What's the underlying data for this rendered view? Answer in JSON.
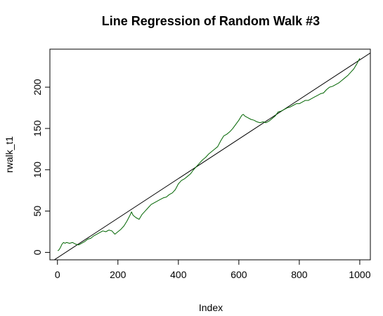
{
  "chart_data": {
    "type": "line",
    "title": "Line Regression of Random Walk #3",
    "xlabel": "Index",
    "ylabel": "rwalk_t1",
    "xlim": [
      -25,
      1035
    ],
    "ylim": [
      -9,
      246
    ],
    "x_ticks": [
      0,
      200,
      400,
      600,
      800,
      1000
    ],
    "y_ticks": [
      0,
      50,
      100,
      150,
      200
    ],
    "grid": false,
    "legend": "none",
    "series": [
      {
        "color": "#006400",
        "points": [
          [
            1,
            2
          ],
          [
            5,
            3
          ],
          [
            10,
            6
          ],
          [
            15,
            10
          ],
          [
            20,
            12
          ],
          [
            25,
            11
          ],
          [
            30,
            12
          ],
          [
            40,
            11
          ],
          [
            50,
            12
          ],
          [
            60,
            10
          ],
          [
            70,
            9
          ],
          [
            80,
            11
          ],
          [
            90,
            13
          ],
          [
            100,
            16
          ],
          [
            110,
            17
          ],
          [
            120,
            20
          ],
          [
            130,
            22
          ],
          [
            140,
            24
          ],
          [
            150,
            26
          ],
          [
            160,
            25
          ],
          [
            170,
            27
          ],
          [
            180,
            26
          ],
          [
            190,
            22
          ],
          [
            200,
            25
          ],
          [
            210,
            28
          ],
          [
            220,
            32
          ],
          [
            230,
            38
          ],
          [
            240,
            45
          ],
          [
            245,
            49
          ],
          [
            250,
            45
          ],
          [
            260,
            42
          ],
          [
            270,
            40
          ],
          [
            280,
            46
          ],
          [
            290,
            50
          ],
          [
            300,
            54
          ],
          [
            310,
            58
          ],
          [
            320,
            60
          ],
          [
            330,
            62
          ],
          [
            340,
            64
          ],
          [
            350,
            66
          ],
          [
            360,
            67
          ],
          [
            370,
            70
          ],
          [
            380,
            72
          ],
          [
            390,
            76
          ],
          [
            400,
            83
          ],
          [
            410,
            87
          ],
          [
            420,
            89
          ],
          [
            430,
            92
          ],
          [
            440,
            95
          ],
          [
            450,
            100
          ],
          [
            460,
            104
          ],
          [
            470,
            108
          ],
          [
            480,
            112
          ],
          [
            490,
            115
          ],
          [
            500,
            119
          ],
          [
            510,
            122
          ],
          [
            520,
            125
          ],
          [
            530,
            128
          ],
          [
            540,
            135
          ],
          [
            550,
            141
          ],
          [
            560,
            143
          ],
          [
            570,
            146
          ],
          [
            580,
            150
          ],
          [
            590,
            155
          ],
          [
            600,
            160
          ],
          [
            610,
            166
          ],
          [
            615,
            167
          ],
          [
            620,
            165
          ],
          [
            630,
            163
          ],
          [
            640,
            161
          ],
          [
            650,
            160
          ],
          [
            660,
            158
          ],
          [
            670,
            157
          ],
          [
            680,
            158
          ],
          [
            690,
            157
          ],
          [
            700,
            159
          ],
          [
            710,
            162
          ],
          [
            720,
            165
          ],
          [
            730,
            170
          ],
          [
            740,
            171
          ],
          [
            750,
            173
          ],
          [
            760,
            175
          ],
          [
            770,
            176
          ],
          [
            780,
            178
          ],
          [
            790,
            180
          ],
          [
            800,
            180
          ],
          [
            810,
            182
          ],
          [
            820,
            184
          ],
          [
            830,
            184
          ],
          [
            840,
            186
          ],
          [
            850,
            188
          ],
          [
            860,
            190
          ],
          [
            870,
            192
          ],
          [
            880,
            193
          ],
          [
            890,
            197
          ],
          [
            900,
            200
          ],
          [
            910,
            201
          ],
          [
            920,
            203
          ],
          [
            930,
            205
          ],
          [
            940,
            208
          ],
          [
            950,
            211
          ],
          [
            960,
            214
          ],
          [
            970,
            218
          ],
          [
            980,
            222
          ],
          [
            990,
            228
          ],
          [
            1000,
            235
          ]
        ]
      }
    ],
    "regression_line": {
      "color": "#000000",
      "intercept": -6.5,
      "slope": 0.2395
    }
  }
}
